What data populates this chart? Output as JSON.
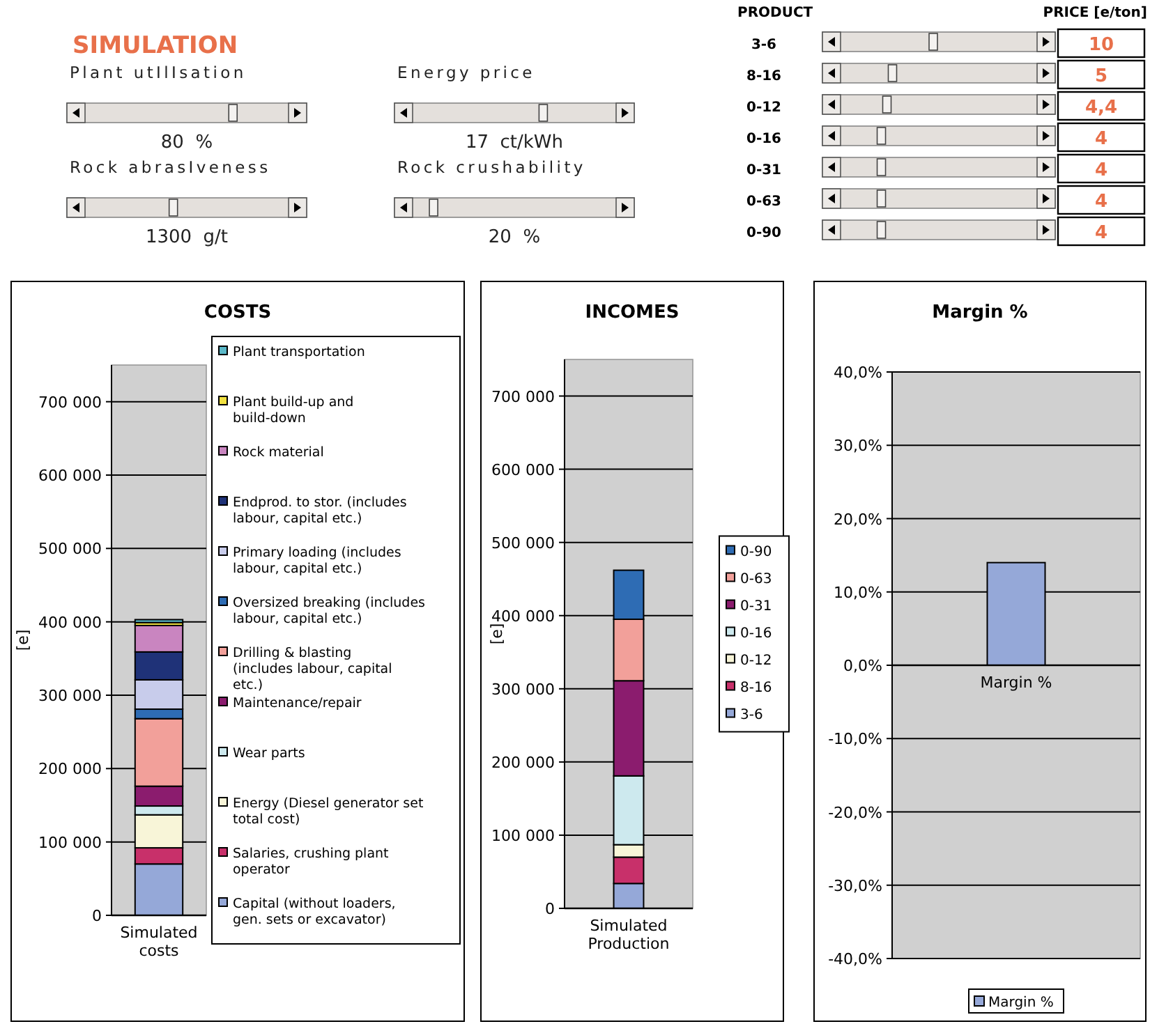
{
  "chart_data": [
    {
      "type": "other",
      "title": "SIMULATION",
      "annotations": [
        "Plant utIlIsation",
        "80  %",
        "Energy price",
        "17  ct/kWh",
        "Rock abrasIveness",
        "1300  g/t",
        "Rock crushability",
        "20  %",
        "PRODUCT",
        "PRICE [e/ton]",
        "3-6",
        "10",
        "8-16",
        "5",
        "0-12",
        "4,4",
        "0-16",
        "4",
        "0-31",
        "4",
        "0-63",
        "4",
        "0-90",
        "4"
      ]
    },
    {
      "type": "bar",
      "title": "COSTS",
      "ylabel": "[e]",
      "categories": [
        "Simulated costs"
      ],
      "stacked": true,
      "grid": "y",
      "legend": "right",
      "ylim": [
        0,
        750000
      ],
      "yticks": [
        {
          "value": 0,
          "label": "0"
        },
        {
          "value": 100000,
          "label": "100 000"
        },
        {
          "value": 200000,
          "label": "200 000"
        },
        {
          "value": 300000,
          "label": "300 000"
        },
        {
          "value": 400000,
          "label": "400 000"
        },
        {
          "value": 500000,
          "label": "500 000"
        },
        {
          "value": 600000,
          "label": "600 000"
        },
        {
          "value": 700000,
          "label": "700 000"
        }
      ],
      "series": [
        {
          "name": "Capital (without loaders, gen. sets or excavator)",
          "color": "#95a8d8",
          "values": [
            70000
          ]
        },
        {
          "name": "Salaries, crushing plant operator",
          "color": "#c8306a",
          "values": [
            22000
          ]
        },
        {
          "name": "Energy (Diesel generator set total cost)",
          "color": "#f8f5d8",
          "values": [
            45000
          ]
        },
        {
          "name": "Wear parts",
          "color": "#cde9ee",
          "values": [
            12000
          ]
        },
        {
          "name": "Maintenance/repair",
          "color": "#8b1c6e",
          "values": [
            27000
          ]
        },
        {
          "name": "Drilling & blasting (includes labour, capital etc.)",
          "color": "#f2a09a",
          "values": [
            92000
          ]
        },
        {
          "name": "Oversized breaking (includes labour, capital etc.)",
          "color": "#2e6cb4",
          "values": [
            13000
          ]
        },
        {
          "name": "Primary loading (includes labour, capital etc.)",
          "color": "#c8cceb",
          "values": [
            40000
          ]
        },
        {
          "name": "Endprod. to stor. (includes labour, capital etc.)",
          "color": "#1f3278",
          "values": [
            38000
          ]
        },
        {
          "name": "Rock material",
          "color": "#c985c0",
          "values": [
            36000
          ]
        },
        {
          "name": "Plant build-up and build-down",
          "color": "#f0e040",
          "values": [
            4000
          ]
        },
        {
          "name": "Plant transportation",
          "color": "#5ab8c8",
          "values": [
            4000
          ]
        }
      ]
    },
    {
      "type": "bar",
      "title": "INCOMES",
      "ylabel": "[e]",
      "categories": [
        "Simulated Production"
      ],
      "stacked": true,
      "grid": "y",
      "legend": "right",
      "ylim": [
        0,
        750000
      ],
      "yticks": [
        {
          "value": 0,
          "label": "0"
        },
        {
          "value": 100000,
          "label": "100 000"
        },
        {
          "value": 200000,
          "label": "200 000"
        },
        {
          "value": 300000,
          "label": "300 000"
        },
        {
          "value": 400000,
          "label": "400 000"
        },
        {
          "value": 500000,
          "label": "500 000"
        },
        {
          "value": 600000,
          "label": "600 000"
        },
        {
          "value": 700000,
          "label": "700 000"
        }
      ],
      "series": [
        {
          "name": "3-6",
          "color": "#95a8d8",
          "values": [
            34000
          ]
        },
        {
          "name": "8-16",
          "color": "#c8306a",
          "values": [
            36000
          ]
        },
        {
          "name": "0-12",
          "color": "#f8f5d8",
          "values": [
            17000
          ]
        },
        {
          "name": "0-16",
          "color": "#cde9ee",
          "values": [
            94000
          ]
        },
        {
          "name": "0-31",
          "color": "#8b1c6e",
          "values": [
            130000
          ]
        },
        {
          "name": "0-63",
          "color": "#f2a09a",
          "values": [
            84000
          ]
        },
        {
          "name": "0-90",
          "color": "#2e6cb4",
          "values": [
            67000
          ]
        }
      ]
    },
    {
      "type": "bar",
      "title": "Margin %",
      "categories": [
        "Margin %"
      ],
      "grid": "y",
      "legend": "bottom",
      "ylim": [
        -40,
        40
      ],
      "yticks": [
        {
          "value": -40,
          "label": "-40,0%"
        },
        {
          "value": -30,
          "label": "-30,0%"
        },
        {
          "value": -20,
          "label": "-20,0%"
        },
        {
          "value": -10,
          "label": "-10,0%"
        },
        {
          "value": 0,
          "label": "0,0%"
        },
        {
          "value": 10,
          "label": "10,0%"
        },
        {
          "value": 20,
          "label": "20,0%"
        },
        {
          "value": 30,
          "label": "30,0%"
        },
        {
          "value": 40,
          "label": "40,0%"
        }
      ],
      "series": [
        {
          "name": "Margin %",
          "color": "#95a8d8",
          "values": [
            14
          ]
        }
      ]
    }
  ]
}
